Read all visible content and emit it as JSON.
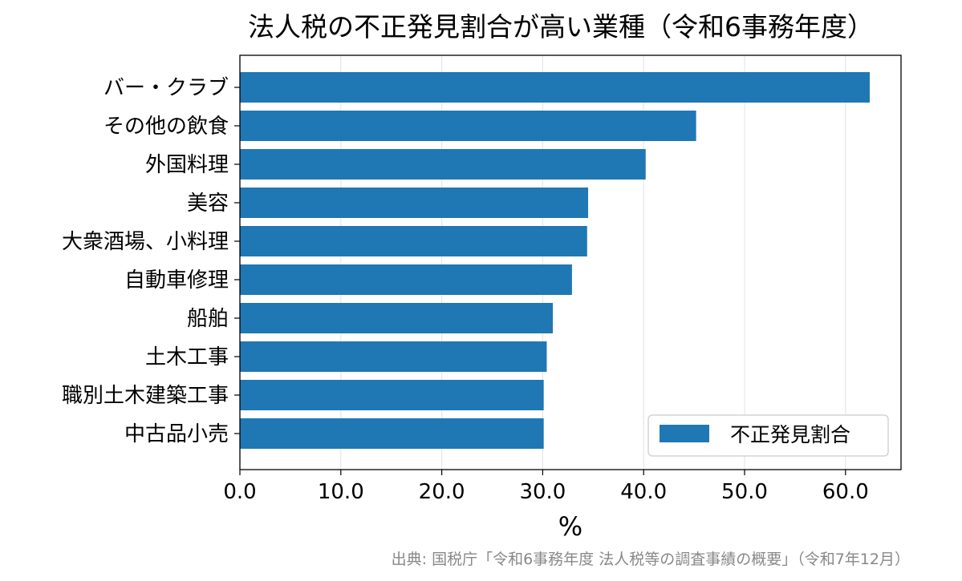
{
  "chart_data": {
    "type": "bar",
    "orientation": "horizontal",
    "title": "法人税の不正発見割合が高い業種（令和6事務年度）",
    "xlabel": "%",
    "ylabel": "",
    "categories": [
      "バー・クラブ",
      "その他の飲食",
      "外国料理",
      "美容",
      "大衆酒場、小料理",
      "自動車修理",
      "船舶",
      "土木工事",
      "職別土木建築工事",
      "中古品小売"
    ],
    "series": [
      {
        "name": "不正発見割合",
        "values": [
          62.4,
          45.2,
          40.2,
          34.5,
          34.4,
          32.9,
          31.0,
          30.4,
          30.1,
          30.1
        ],
        "color": "#1f77b4"
      }
    ],
    "xlim": [
      0,
      65.5
    ],
    "xticks": [
      "0.0",
      "10.0",
      "20.0",
      "30.0",
      "40.0",
      "50.0",
      "60.0"
    ],
    "grid": "vertical",
    "legend": "bottom-right",
    "source": "出典: 国税庁「令和6事務年度 法人税等の調査事績の概要」（令和7年12月）"
  }
}
